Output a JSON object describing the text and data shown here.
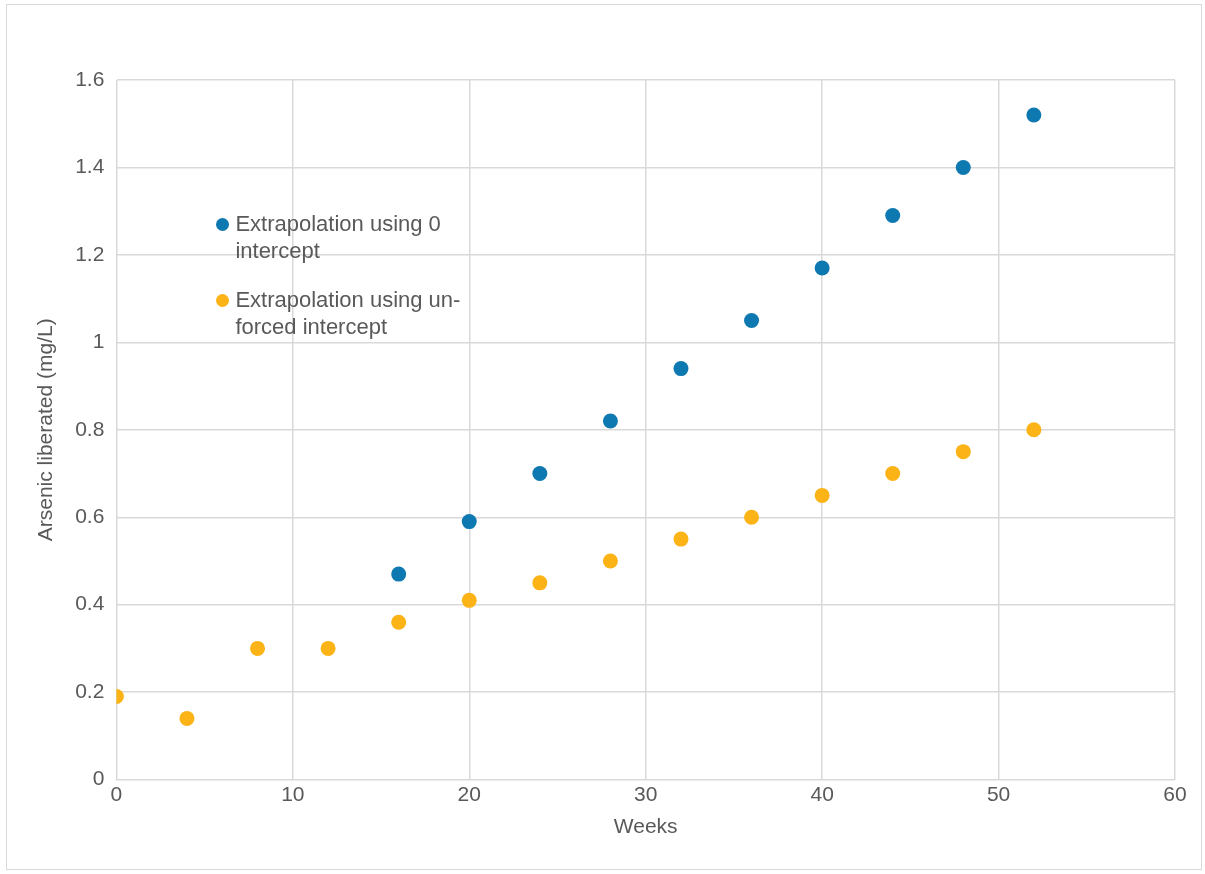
{
  "chart_data": {
    "type": "scatter",
    "xlabel": "Weeks",
    "ylabel": "Arsenic liberated (mg/L)",
    "x": [
      0,
      4,
      8,
      12,
      16,
      20,
      24,
      28,
      32,
      36,
      40,
      44,
      48,
      52
    ],
    "series": [
      {
        "name": "Extrapolation using 0 intercept",
        "color": "#0e78b0",
        "values": [
          null,
          null,
          null,
          null,
          0.47,
          0.59,
          0.7,
          0.82,
          0.94,
          1.05,
          1.17,
          1.29,
          1.4,
          1.52
        ]
      },
      {
        "name": "Extrapolation using un-forced intercept",
        "color": "#fbb316",
        "values": [
          0.19,
          0.14,
          0.3,
          0.3,
          0.36,
          0.41,
          0.45,
          0.5,
          0.55,
          0.6,
          0.65,
          0.7,
          0.75,
          0.8
        ]
      }
    ],
    "xlim": [
      0,
      60
    ],
    "xticks": [
      0,
      10,
      20,
      30,
      40,
      50,
      60
    ],
    "ylim": [
      0,
      1.6
    ],
    "yticks": [
      0,
      0.2,
      0.4,
      0.6,
      0.8,
      1,
      1.2,
      1.4,
      1.6
    ],
    "grid": true,
    "legend": "top left",
    "marker": "circle"
  }
}
